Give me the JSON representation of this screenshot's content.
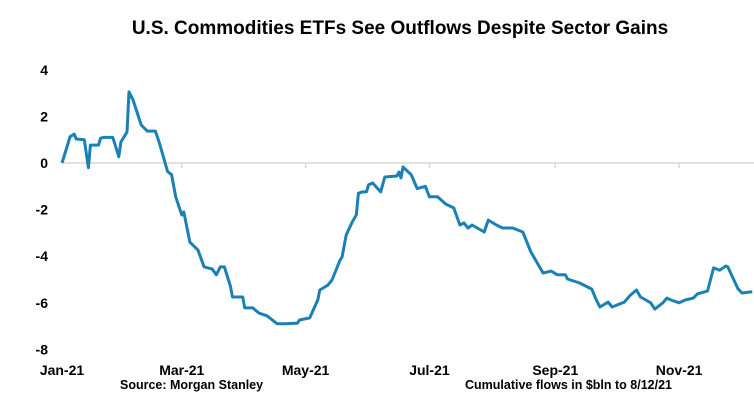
{
  "chart_data": {
    "type": "line",
    "title": "U.S. Commodities ETFs See Outflows Despite Sector Gains",
    "xlabel": "",
    "ylabel": "",
    "source": "Source: Morgan Stanley",
    "note": "Cumulative flows in $bln to 8/12/21",
    "xlim": [
      "2021-01-01",
      "2021-12-07"
    ],
    "ylim": [
      -8,
      4
    ],
    "yticks": [
      4,
      2,
      0,
      -2,
      -4,
      -6,
      -8
    ],
    "xticks": [
      {
        "date": "2021-01-01",
        "label": "Jan-21"
      },
      {
        "date": "2021-03-01",
        "label": "Mar-21"
      },
      {
        "date": "2021-05-01",
        "label": "May-21"
      },
      {
        "date": "2021-07-01",
        "label": "Jul-21"
      },
      {
        "date": "2021-09-01",
        "label": "Sep-21"
      },
      {
        "date": "2021-11-01",
        "label": "Nov-21"
      }
    ],
    "grid": "zero line only",
    "line_color": "#1a80b6",
    "series": [
      {
        "points": [
          [
            "2021-01-01",
            0
          ],
          [
            "2021-01-05",
            1.13
          ],
          [
            "2021-01-07",
            1.24
          ],
          [
            "2021-01-08",
            1.03
          ],
          [
            "2021-01-12",
            1.0
          ],
          [
            "2021-01-14",
            -0.2
          ],
          [
            "2021-01-15",
            0.77
          ],
          [
            "2021-01-19",
            0.77
          ],
          [
            "2021-01-20",
            1.07
          ],
          [
            "2021-01-22",
            1.1
          ],
          [
            "2021-01-26",
            1.1
          ],
          [
            "2021-01-29",
            0.27
          ],
          [
            "2021-01-30",
            0.9
          ],
          [
            "2021-02-02",
            1.33
          ],
          [
            "2021-02-03",
            3.05
          ],
          [
            "2021-02-05",
            2.7
          ],
          [
            "2021-02-09",
            1.63
          ],
          [
            "2021-02-12",
            1.37
          ],
          [
            "2021-02-16",
            1.37
          ],
          [
            "2021-02-18",
            0.86
          ],
          [
            "2021-02-22",
            -0.37
          ],
          [
            "2021-02-24",
            -0.5
          ],
          [
            "2021-02-26",
            -1.45
          ],
          [
            "2021-03-01",
            -2.23
          ],
          [
            "2021-03-02",
            -2.1
          ],
          [
            "2021-03-05",
            -3.4
          ],
          [
            "2021-03-09",
            -3.74
          ],
          [
            "2021-03-12",
            -4.46
          ],
          [
            "2021-03-16",
            -4.55
          ],
          [
            "2021-03-18",
            -4.8
          ],
          [
            "2021-03-20",
            -4.46
          ],
          [
            "2021-03-22",
            -4.46
          ],
          [
            "2021-03-25",
            -5.3
          ],
          [
            "2021-03-26",
            -5.75
          ],
          [
            "2021-03-31",
            -5.75
          ],
          [
            "2021-04-01",
            -6.22
          ],
          [
            "2021-04-05",
            -6.22
          ],
          [
            "2021-04-08",
            -6.44
          ],
          [
            "2021-04-12",
            -6.56
          ],
          [
            "2021-04-17",
            -6.9
          ],
          [
            "2021-04-21",
            -6.9
          ],
          [
            "2021-04-27",
            -6.87
          ],
          [
            "2021-04-28",
            -6.74
          ],
          [
            "2021-05-03",
            -6.65
          ],
          [
            "2021-05-07",
            -5.88
          ],
          [
            "2021-05-08",
            -5.45
          ],
          [
            "2021-05-12",
            -5.24
          ],
          [
            "2021-05-14",
            -5.02
          ],
          [
            "2021-05-18",
            -4.16
          ],
          [
            "2021-05-19",
            -4.03
          ],
          [
            "2021-05-21",
            -3.09
          ],
          [
            "2021-05-24",
            -2.53
          ],
          [
            "2021-05-26",
            -2.23
          ],
          [
            "2021-05-27",
            -1.3
          ],
          [
            "2021-05-29",
            -1.24
          ],
          [
            "2021-05-31",
            -1.24
          ],
          [
            "2021-06-01",
            -0.94
          ],
          [
            "2021-06-03",
            -0.86
          ],
          [
            "2021-06-07",
            -1.24
          ],
          [
            "2021-06-09",
            -0.6
          ],
          [
            "2021-06-15",
            -0.56
          ],
          [
            "2021-06-16",
            -0.39
          ],
          [
            "2021-06-17",
            -0.64
          ],
          [
            "2021-06-18",
            -0.17
          ],
          [
            "2021-06-22",
            -0.5
          ],
          [
            "2021-06-25",
            -1.1
          ],
          [
            "2021-06-29",
            -1.0
          ],
          [
            "2021-07-01",
            -1.45
          ],
          [
            "2021-07-05",
            -1.45
          ],
          [
            "2021-07-09",
            -1.76
          ],
          [
            "2021-07-13",
            -1.93
          ],
          [
            "2021-07-16",
            -2.66
          ],
          [
            "2021-07-18",
            -2.57
          ],
          [
            "2021-07-20",
            -2.79
          ],
          [
            "2021-07-22",
            -2.66
          ],
          [
            "2021-07-28",
            -2.96
          ],
          [
            "2021-07-30",
            -2.45
          ],
          [
            "2021-08-03",
            -2.66
          ],
          [
            "2021-08-06",
            -2.79
          ],
          [
            "2021-08-11",
            -2.79
          ],
          [
            "2021-08-16",
            -2.96
          ],
          [
            "2021-08-20",
            -3.82
          ],
          [
            "2021-08-26",
            -4.72
          ],
          [
            "2021-08-30",
            -4.64
          ],
          [
            "2021-09-02",
            -4.8
          ],
          [
            "2021-09-06",
            -4.8
          ],
          [
            "2021-09-07",
            -4.98
          ],
          [
            "2021-09-13",
            -5.15
          ],
          [
            "2021-09-19",
            -5.41
          ],
          [
            "2021-09-21",
            -5.84
          ],
          [
            "2021-09-23",
            -6.18
          ],
          [
            "2021-09-27",
            -5.97
          ],
          [
            "2021-09-29",
            -6.18
          ],
          [
            "2021-10-05",
            -5.97
          ],
          [
            "2021-10-08",
            -5.67
          ],
          [
            "2021-10-11",
            -5.45
          ],
          [
            "2021-10-13",
            -5.75
          ],
          [
            "2021-10-18",
            -6.0
          ],
          [
            "2021-10-20",
            -6.27
          ],
          [
            "2021-10-24",
            -6.0
          ],
          [
            "2021-10-26",
            -5.8
          ],
          [
            "2021-10-28",
            -5.88
          ],
          [
            "2021-11-01",
            -6.0
          ],
          [
            "2021-11-04",
            -5.88
          ],
          [
            "2021-11-08",
            -5.8
          ],
          [
            "2021-11-10",
            -5.62
          ],
          [
            "2021-11-15",
            -5.5
          ],
          [
            "2021-11-18",
            -4.5
          ],
          [
            "2021-11-21",
            -4.6
          ],
          [
            "2021-11-24",
            -4.42
          ],
          [
            "2021-11-25",
            -4.46
          ],
          [
            "2021-11-28",
            -5.02
          ],
          [
            "2021-11-30",
            -5.4
          ],
          [
            "2021-12-02",
            -5.58
          ],
          [
            "2021-12-07",
            -5.53
          ]
        ]
      }
    ]
  }
}
